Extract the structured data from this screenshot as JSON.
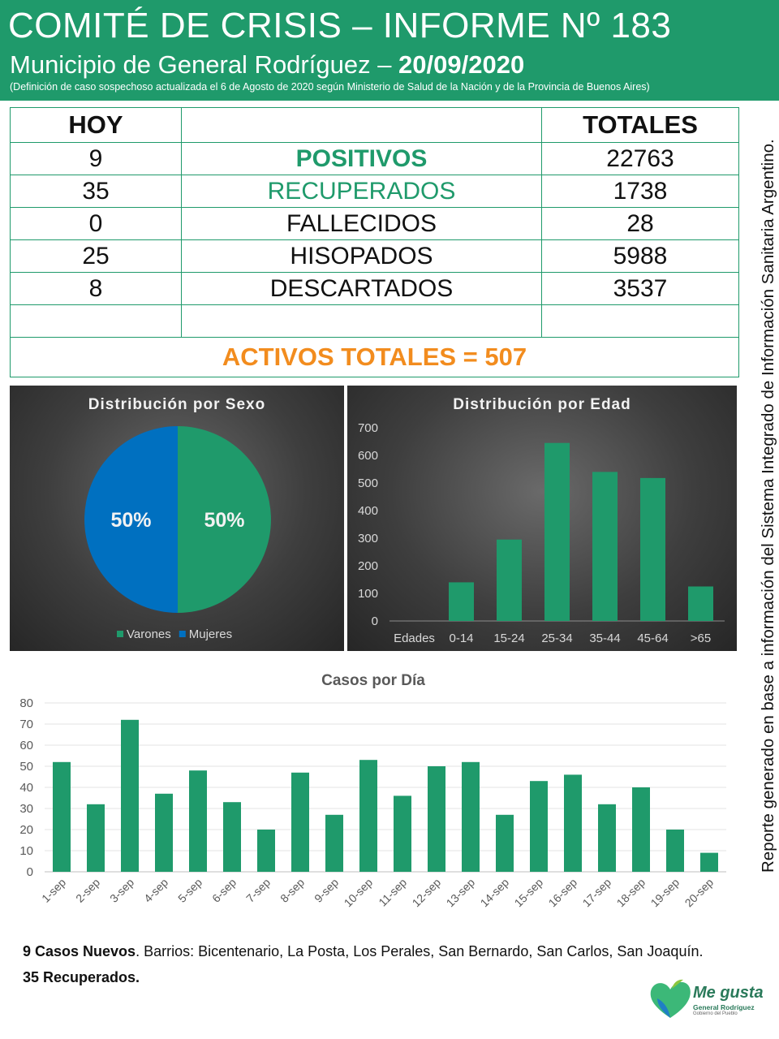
{
  "header": {
    "title": "COMITÉ DE CRISIS – INFORME Nº 183",
    "subtitle_prefix": "Municipio de General Rodríguez – ",
    "date": "20/09/2020",
    "note": "(Definición de caso sospechoso actualizada el 6 de Agosto de 2020 según Ministerio de Salud de la Nación y de la Provincia de Buenos Aires)"
  },
  "summary": {
    "col_hoy": "HOY",
    "col_totales": "TOTALES",
    "rows": [
      {
        "hoy": "9",
        "label": "POSITIVOS",
        "total": "22763"
      },
      {
        "hoy": "35",
        "label": "RECUPERADOS",
        "total": "1738"
      },
      {
        "hoy": "0",
        "label": "FALLECIDOS",
        "total": "28"
      },
      {
        "hoy": "25",
        "label": "HISOPADOS",
        "total": "5988"
      },
      {
        "hoy": "8",
        "label": "DESCARTADOS",
        "total": "3537"
      }
    ],
    "activos": "ACTIVOS TOTALES = 507"
  },
  "side_note": "Reporte generado en base a información del Sistema Integrado de Información Sanitaria Argentino.",
  "colors": {
    "green": "#1f9a6b",
    "blue": "#0070c0",
    "orange": "#f28c1e"
  },
  "chart_data": [
    {
      "type": "pie",
      "title": "Distribución por Sexo",
      "labels": [
        "Varones",
        "Mujeres"
      ],
      "values": [
        50,
        50
      ],
      "value_labels": [
        "50%",
        "50%"
      ],
      "colors": [
        "#1f9a6b",
        "#0070c0"
      ],
      "legend": "bottom"
    },
    {
      "type": "bar",
      "title": "Distribución por Edad",
      "xlabel": "Edades",
      "categories": [
        "0-14",
        "15-24",
        "25-34",
        "35-44",
        "45-64",
        ">65"
      ],
      "values": [
        140,
        295,
        645,
        540,
        518,
        125
      ],
      "ylim": [
        0,
        700
      ],
      "yticks": [
        0,
        100,
        200,
        300,
        400,
        500,
        600,
        700
      ],
      "color": "#1f9a6b"
    },
    {
      "type": "bar",
      "title": "Casos por Día",
      "categories": [
        "1-sep",
        "2-sep",
        "3-sep",
        "4-sep",
        "5-sep",
        "6-sep",
        "7-sep",
        "8-sep",
        "9-sep",
        "10-sep",
        "11-sep",
        "12-sep",
        "13-sep",
        "14-sep",
        "15-sep",
        "16-sep",
        "17-sep",
        "18-sep",
        "19-sep",
        "20-sep"
      ],
      "values": [
        52,
        32,
        72,
        37,
        48,
        33,
        20,
        47,
        27,
        53,
        36,
        50,
        52,
        27,
        43,
        46,
        32,
        40,
        20,
        9
      ],
      "ylim": [
        0,
        80
      ],
      "yticks": [
        0,
        10,
        20,
        30,
        40,
        50,
        60,
        70,
        80
      ],
      "grid": true,
      "color": "#1f9a6b"
    }
  ],
  "footer": {
    "line1_bold": "9 Casos Nuevos",
    "line1_rest": ". Barrios: Bicentenario, La Posta, Los Perales, San Bernardo, San Carlos, San Joaquín.",
    "line2": "35 Recuperados."
  },
  "logo": {
    "main": "Me gusta",
    "sub1": "General Rodríguez",
    "sub2": "Gobierno del Pueblo"
  }
}
